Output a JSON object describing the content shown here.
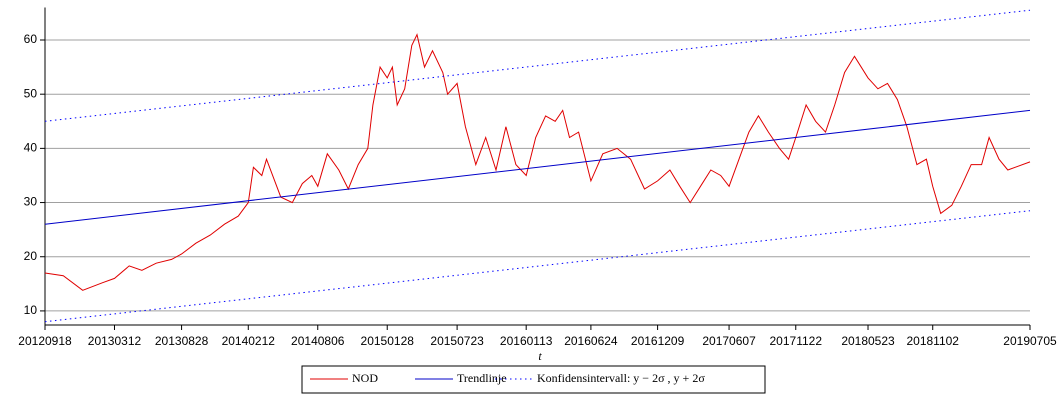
{
  "chart_data": {
    "type": "line",
    "x_label": "t",
    "xlim": [
      "2012-09-18",
      "2019-07-05"
    ],
    "ylim": [
      7.4,
      66
    ],
    "xticks": [
      {
        "value": "2012-09-18",
        "label": "20120918"
      },
      {
        "value": "2013-03-12",
        "label": "20130312"
      },
      {
        "value": "2013-08-28",
        "label": "20130828"
      },
      {
        "value": "2014-02-12",
        "label": "20140212"
      },
      {
        "value": "2014-08-06",
        "label": "20140806"
      },
      {
        "value": "2015-01-28",
        "label": "20150128"
      },
      {
        "value": "2015-07-23",
        "label": "20150723"
      },
      {
        "value": "2016-01-13",
        "label": "20160113"
      },
      {
        "value": "2016-06-24",
        "label": "20160624"
      },
      {
        "value": "2016-12-09",
        "label": "20161209"
      },
      {
        "value": "2017-06-07",
        "label": "20170607"
      },
      {
        "value": "2017-11-22",
        "label": "20171122"
      },
      {
        "value": "2018-05-23",
        "label": "20180523"
      },
      {
        "value": "2018-11-02",
        "label": "20181102"
      },
      {
        "value": "2019-07-05",
        "label": "20190705"
      }
    ],
    "yticks": [
      10,
      20,
      30,
      40,
      50,
      60
    ],
    "grid": true,
    "legend": "bottom",
    "series": [
      {
        "name": "NOD",
        "color": "#e00000",
        "style": "solid",
        "x": [
          "2012-09-18",
          "2012-11-03",
          "2012-12-22",
          "2013-02-10",
          "2013-03-12",
          "2013-04-18",
          "2013-05-20",
          "2013-06-25",
          "2013-08-03",
          "2013-08-28",
          "2013-10-03",
          "2013-11-08",
          "2013-12-14",
          "2014-01-18",
          "2014-02-12",
          "2014-02-25",
          "2014-03-18",
          "2014-03-30",
          "2014-05-05",
          "2014-06-03",
          "2014-06-28",
          "2014-07-22",
          "2014-08-06",
          "2014-08-30",
          "2014-09-28",
          "2014-10-22",
          "2014-11-16",
          "2014-12-10",
          "2014-12-23",
          "2015-01-10",
          "2015-01-28",
          "2015-02-10",
          "2015-02-22",
          "2015-03-13",
          "2015-03-31",
          "2015-04-13",
          "2015-05-02",
          "2015-05-22",
          "2015-06-17",
          "2015-06-29",
          "2015-07-23",
          "2015-08-13",
          "2015-09-08",
          "2015-10-03",
          "2015-10-29",
          "2015-11-23",
          "2015-12-18",
          "2016-01-13",
          "2016-02-06",
          "2016-03-02",
          "2016-03-26",
          "2016-04-14",
          "2016-05-01",
          "2016-05-24",
          "2016-06-24",
          "2016-07-24",
          "2016-08-29",
          "2016-10-02",
          "2016-11-06",
          "2016-12-09",
          "2017-01-09",
          "2017-02-03",
          "2017-03-01",
          "2017-03-27",
          "2017-04-22",
          "2017-05-17",
          "2017-06-07",
          "2017-07-02",
          "2017-07-27",
          "2017-08-20",
          "2017-09-14",
          "2017-10-12",
          "2017-11-04",
          "2017-11-22",
          "2017-12-18",
          "2018-01-11",
          "2018-02-05",
          "2018-02-28",
          "2018-03-25",
          "2018-04-19",
          "2018-05-23",
          "2018-06-17",
          "2018-07-11",
          "2018-08-05",
          "2018-08-29",
          "2018-09-23",
          "2018-10-17",
          "2018-11-02",
          "2018-11-22",
          "2018-12-20",
          "2019-01-13",
          "2019-02-07",
          "2019-03-05",
          "2019-03-24",
          "2019-04-18",
          "2019-05-10",
          "2019-07-05"
        ],
        "values": [
          17,
          16.5,
          13.8,
          15.2,
          16,
          18.3,
          17.5,
          18.8,
          19.5,
          20.5,
          22.5,
          24,
          26,
          27.5,
          30,
          36.5,
          35,
          38,
          31,
          30,
          33.5,
          35,
          33,
          39,
          36,
          32.5,
          37,
          40,
          48,
          55,
          53,
          55,
          48,
          51,
          59,
          61,
          55,
          58,
          54,
          50,
          52,
          44,
          37,
          42,
          36,
          44,
          37,
          35,
          42,
          46,
          45,
          47,
          42,
          43,
          34,
          39,
          40,
          38,
          32.5,
          34,
          36,
          33,
          30,
          33,
          36,
          35,
          33,
          38,
          43,
          46,
          43,
          40,
          38,
          42,
          48,
          45,
          43,
          48,
          54,
          57,
          53,
          51,
          52,
          49,
          44,
          37,
          38,
          33,
          28,
          29.5,
          33,
          37,
          37,
          42,
          38,
          36,
          37.5
        ]
      },
      {
        "name": "Trendlinje",
        "color": "#0000c8",
        "style": "solid",
        "x": [
          "2012-09-18",
          "2019-07-05"
        ],
        "values": [
          26,
          47
        ]
      },
      {
        "name": "Konfidensintervall: y − 2σ , y + 2σ",
        "color": "#0000ff",
        "style": "dotted",
        "x": [
          "2012-09-18",
          "2019-07-05"
        ],
        "lower": [
          8,
          28.5
        ],
        "upper": [
          45,
          65.5
        ]
      }
    ]
  }
}
